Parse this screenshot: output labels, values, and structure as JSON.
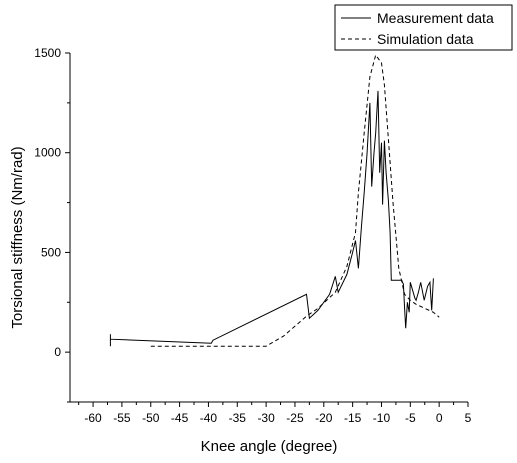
{
  "chart_data": {
    "type": "line",
    "xlabel": "Knee angle (degree)",
    "ylabel": "Torsional stiffness (Nm/rad)",
    "xlim": [
      -64,
      5
    ],
    "ylim": [
      -250,
      1500
    ],
    "xticks": [
      -60,
      -55,
      -50,
      -45,
      -40,
      -35,
      -30,
      -25,
      -20,
      -15,
      -10,
      -5,
      0,
      5
    ],
    "yticks": [
      0,
      500,
      1000,
      1500
    ],
    "legend_position": "top-right",
    "series": [
      {
        "name": "Measurement data",
        "style": "solid",
        "color": "#000000",
        "points": [
          [
            -57,
            30
          ],
          [
            -57,
            90
          ],
          [
            -57,
            65
          ],
          [
            -39.5,
            45
          ],
          [
            -39.2,
            60
          ],
          [
            -23,
            290
          ],
          [
            -22.5,
            170
          ],
          [
            -21,
            210
          ],
          [
            -19,
            290
          ],
          [
            -18,
            380
          ],
          [
            -17.5,
            300
          ],
          [
            -16,
            390
          ],
          [
            -15,
            500
          ],
          [
            -14.5,
            560
          ],
          [
            -14,
            420
          ],
          [
            -13.5,
            620
          ],
          [
            -13,
            800
          ],
          [
            -12.5,
            1000
          ],
          [
            -12,
            1250
          ],
          [
            -11.7,
            830
          ],
          [
            -11.3,
            1000
          ],
          [
            -11,
            1100
          ],
          [
            -10.6,
            1310
          ],
          [
            -10.3,
            900
          ],
          [
            -10,
            1050
          ],
          [
            -9.8,
            740
          ],
          [
            -9.5,
            1060
          ],
          [
            -9.2,
            900
          ],
          [
            -8.8,
            760
          ],
          [
            -8.5,
            600
          ],
          [
            -8.3,
            360
          ],
          [
            -6.5,
            360
          ],
          [
            -6.2,
            340
          ],
          [
            -6,
            220
          ],
          [
            -5.8,
            120
          ],
          [
            -5.5,
            250
          ],
          [
            -5.2,
            200
          ],
          [
            -5,
            350
          ],
          [
            -4.5,
            300
          ],
          [
            -4.2,
            270
          ],
          [
            -4,
            260
          ],
          [
            -3.6,
            300
          ],
          [
            -3.2,
            350
          ],
          [
            -2.6,
            260
          ],
          [
            -2,
            330
          ],
          [
            -1.6,
            350
          ],
          [
            -1.3,
            210
          ],
          [
            -1,
            370
          ]
        ]
      },
      {
        "name": "Simulation data",
        "style": "dashed",
        "color": "#000000",
        "points": [
          [
            -50,
            30
          ],
          [
            -30,
            30
          ],
          [
            -27,
            80
          ],
          [
            -23,
            180
          ],
          [
            -21,
            220
          ],
          [
            -18,
            300
          ],
          [
            -16,
            430
          ],
          [
            -14.5,
            600
          ],
          [
            -14,
            800
          ],
          [
            -13,
            1100
          ],
          [
            -12,
            1380
          ],
          [
            -11,
            1490
          ],
          [
            -10,
            1450
          ],
          [
            -9.5,
            1340
          ],
          [
            -9,
            1150
          ],
          [
            -8,
            750
          ],
          [
            -7,
            420
          ],
          [
            -6,
            290
          ],
          [
            -5,
            260
          ],
          [
            -4,
            240
          ],
          [
            -2.5,
            220
          ],
          [
            -1,
            200
          ],
          [
            0,
            175
          ]
        ]
      }
    ]
  }
}
